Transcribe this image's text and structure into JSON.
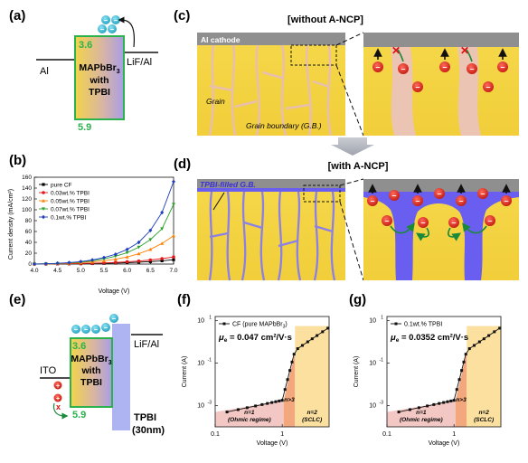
{
  "panels": {
    "a": {
      "label": "(a)",
      "top_value": "3.6",
      "bottom_value": "5.9",
      "material_line1": "MAPbBr",
      "material_sub": "3",
      "material_line2": "with",
      "material_line3": "TPBI",
      "left_electrode": "Al",
      "right_electrode": "LiF/Al"
    },
    "b": {
      "label": "(b)"
    },
    "c": {
      "label": "(c)",
      "title": "[without A-NCP]",
      "cathode_label": "Al cathode",
      "grain_label": "Grain",
      "gb_label": "Grain boundary (G.B.)"
    },
    "d": {
      "label": "(d)",
      "title": "[with A-NCP]",
      "filled_label": "TPBI-filled G.B."
    },
    "e": {
      "label": "(e)",
      "top_value": "3.6",
      "bottom_value": "5.9",
      "material_line1": "MAPbBr",
      "material_sub": "3",
      "material_line2": "with",
      "material_line3": "TPBI",
      "left_electrode": "ITO",
      "right_electrode": "LiF/Al",
      "tpbi_label": "TPBI",
      "tpbi_thickness": "(30nm)"
    },
    "f": {
      "label": "(f)",
      "legend": "CF (pure MAPbBr",
      "legend_sub": "3",
      "legend_end": ")",
      "mobility_symbol": "μ",
      "mobility_sub": "e",
      "mobility_value": "= 0.047 cm²/V·s",
      "region1_line1": "n=1",
      "region1_line2": "(Ohmic regime)",
      "region2": "n>3",
      "region3_line1": "n=2",
      "region3_line2": "(SCLC)",
      "ylabel": "Current (A)",
      "xlabel": "Voltage (V)",
      "xticks": [
        "0.1",
        "1"
      ],
      "yticks": [
        "10",
        "10",
        "10"
      ],
      "ytick_exps": [
        "1",
        "-1",
        "-3"
      ]
    },
    "g": {
      "label": "(g)",
      "legend": "0.1wt.% TPBI",
      "mobility_symbol": "μ",
      "mobility_sub": "e",
      "mobility_value": "= 0.0352 cm²/V·s",
      "region1_line1": "n=1",
      "region1_line2": "(Ohmic regime)",
      "region2": "n>3",
      "region3_line1": "n=2",
      "region3_line2": "(SCLC)",
      "ylabel": "Current (A)",
      "xlabel": "Voltage (V)",
      "xticks": [
        "0.1",
        "1"
      ],
      "yticks": [
        "10",
        "10",
        "10"
      ],
      "ytick_exps": [
        "1",
        "-1",
        "-3"
      ]
    }
  },
  "chart_data": {
    "type": "line",
    "xlabel": "Voltage (V)",
    "ylabel": "Current density (mA/cm²)",
    "xlim": [
      4.0,
      7.0
    ],
    "ylim": [
      0,
      160
    ],
    "xticks": [
      "4.0",
      "4.5",
      "5.0",
      "5.5",
      "6.0",
      "6.5",
      "7.0"
    ],
    "yticks": [
      "0",
      "20",
      "40",
      "60",
      "80",
      "100",
      "120",
      "140",
      "160"
    ],
    "legend_position": "top-left",
    "x": [
      4.0,
      4.25,
      4.5,
      4.75,
      5.0,
      5.25,
      5.5,
      5.75,
      6.0,
      6.25,
      6.5,
      6.75,
      7.0
    ],
    "series": [
      {
        "name": "pure CF",
        "color": "#000000",
        "marker": "square",
        "values": [
          0,
          0,
          0.2,
          0.4,
          0.6,
          0.9,
          1.3,
          1.8,
          2.5,
          3.5,
          4.5,
          6,
          8
        ]
      },
      {
        "name": "0.03wt.% TPBI",
        "color": "#e41a1c",
        "marker": "circle",
        "values": [
          0,
          0.2,
          0.4,
          0.7,
          1,
          1.5,
          2.2,
          3,
          4.2,
          5.5,
          7.5,
          10,
          13
        ]
      },
      {
        "name": "0.05wt.% TPBI",
        "color": "#ff7f00",
        "marker": "triangle",
        "values": [
          0,
          0.3,
          0.8,
          1.5,
          2.5,
          4,
          6,
          9,
          13,
          19,
          27,
          38,
          52
        ]
      },
      {
        "name": "0.07wt.% TPBI",
        "color": "#2ca02c",
        "marker": "triangle-down",
        "values": [
          0,
          0.4,
          1,
          2,
          3.5,
          6,
          9.5,
          14.5,
          21,
          31,
          45,
          65,
          110
        ]
      },
      {
        "name": "0.1wt.% TPBI",
        "color": "#1f3fbf",
        "marker": "diamond",
        "values": [
          0,
          0.5,
          1.3,
          2.6,
          4.5,
          7.5,
          12,
          18,
          27,
          40,
          62,
          95,
          152
        ]
      }
    ]
  }
}
